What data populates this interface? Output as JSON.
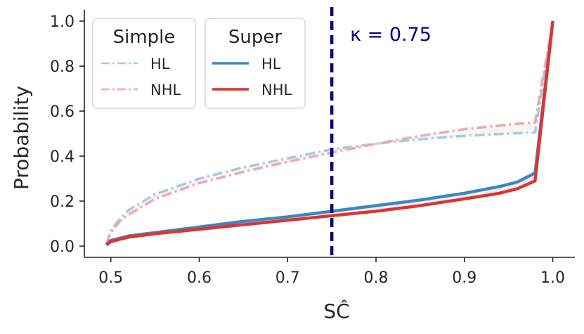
{
  "chart_data": {
    "type": "line",
    "title": "",
    "xlabel": "SĈ",
    "ylabel": "Probability",
    "xlim": [
      0.47,
      1.025
    ],
    "ylim": [
      -0.05,
      1.05
    ],
    "xticks": [
      "0.5",
      "0.6",
      "0.7",
      "0.8",
      "0.9",
      "1.0"
    ],
    "yticks": [
      "0.0",
      "0.2",
      "0.4",
      "0.6",
      "0.8",
      "1.0"
    ],
    "grid": false,
    "annotation": {
      "text": "κ = 0.75",
      "x": 0.75,
      "color": "#00008b",
      "line_style": "dashed"
    },
    "legends": [
      {
        "title": "Simple",
        "entries": [
          {
            "label": "HL",
            "series": "simple_hl"
          },
          {
            "label": "NHL",
            "series": "simple_nhl"
          }
        ]
      },
      {
        "title": "Super",
        "entries": [
          {
            "label": "HL",
            "series": "super_hl"
          },
          {
            "label": "NHL",
            "series": "super_nhl"
          }
        ]
      }
    ],
    "series": [
      {
        "key": "simple_hl",
        "style": "dashdot",
        "color": "#a6cbe3",
        "x": [
          0.495,
          0.5,
          0.51,
          0.52,
          0.55,
          0.6,
          0.65,
          0.7,
          0.75,
          0.8,
          0.85,
          0.9,
          0.95,
          0.98,
          1.0
        ],
        "y": [
          0.01,
          0.07,
          0.12,
          0.16,
          0.23,
          0.3,
          0.35,
          0.39,
          0.43,
          0.455,
          0.475,
          0.49,
          0.5,
          0.505,
          1.0
        ]
      },
      {
        "key": "simple_nhl",
        "style": "dashdot",
        "color": "#f4a6ad",
        "x": [
          0.495,
          0.5,
          0.51,
          0.52,
          0.55,
          0.6,
          0.65,
          0.7,
          0.75,
          0.8,
          0.85,
          0.9,
          0.95,
          0.98,
          1.0
        ],
        "y": [
          0.01,
          0.06,
          0.11,
          0.14,
          0.21,
          0.28,
          0.33,
          0.375,
          0.415,
          0.455,
          0.49,
          0.52,
          0.54,
          0.55,
          1.0
        ]
      },
      {
        "key": "super_hl",
        "style": "solid",
        "color": "#3a87c3",
        "x": [
          0.495,
          0.5,
          0.52,
          0.55,
          0.6,
          0.65,
          0.7,
          0.75,
          0.8,
          0.85,
          0.9,
          0.94,
          0.96,
          0.98,
          1.0
        ],
        "y": [
          0.005,
          0.025,
          0.045,
          0.06,
          0.085,
          0.11,
          0.13,
          0.155,
          0.18,
          0.205,
          0.235,
          0.265,
          0.285,
          0.325,
          1.0
        ]
      },
      {
        "key": "super_nhl",
        "style": "solid",
        "color": "#de3431",
        "x": [
          0.495,
          0.5,
          0.52,
          0.55,
          0.6,
          0.65,
          0.7,
          0.75,
          0.8,
          0.85,
          0.9,
          0.94,
          0.96,
          0.98,
          1.0
        ],
        "y": [
          0.005,
          0.02,
          0.04,
          0.055,
          0.075,
          0.095,
          0.115,
          0.135,
          0.155,
          0.18,
          0.21,
          0.235,
          0.255,
          0.29,
          1.0
        ]
      }
    ]
  }
}
